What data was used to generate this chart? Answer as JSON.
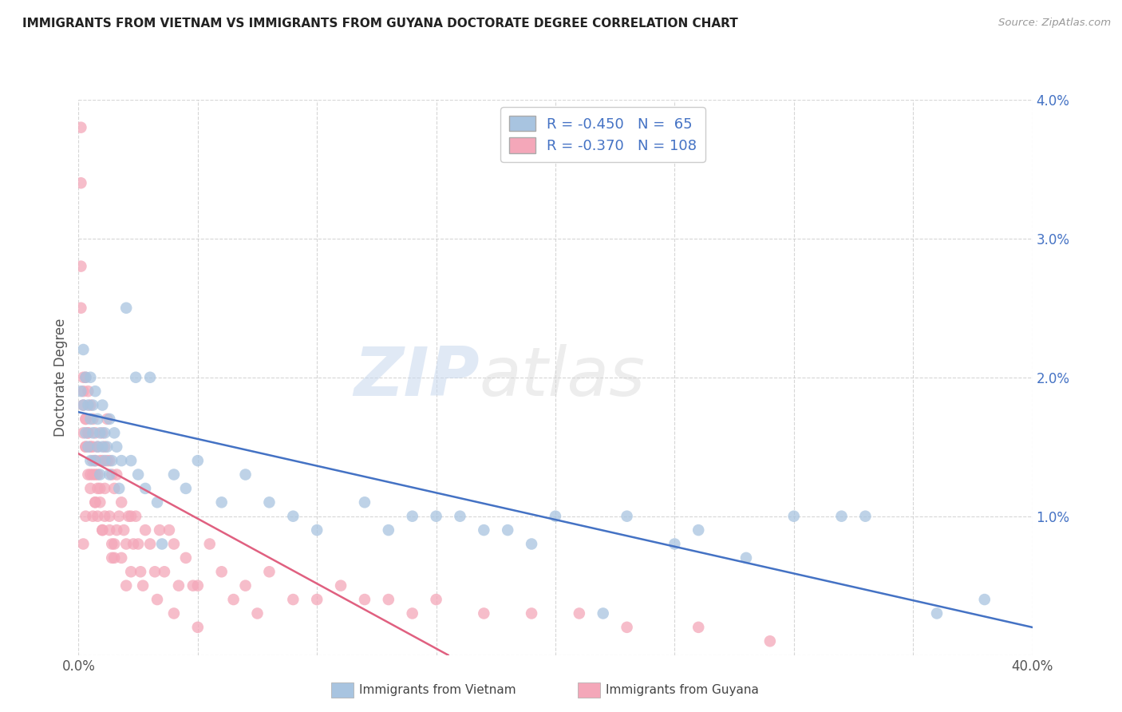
{
  "title": "IMMIGRANTS FROM VIETNAM VS IMMIGRANTS FROM GUYANA DOCTORATE DEGREE CORRELATION CHART",
  "source": "Source: ZipAtlas.com",
  "ylabel": "Doctorate Degree",
  "xlim": [
    0.0,
    0.4
  ],
  "ylim": [
    0.0,
    0.04
  ],
  "xticks": [
    0.0,
    0.05,
    0.1,
    0.15,
    0.2,
    0.25,
    0.3,
    0.35,
    0.4
  ],
  "yticks": [
    0.0,
    0.01,
    0.02,
    0.03,
    0.04
  ],
  "legend_R_blue": "-0.450",
  "legend_N_blue": "65",
  "legend_R_pink": "-0.370",
  "legend_N_pink": "108",
  "legend_label_blue": "Immigrants from Vietnam",
  "legend_label_pink": "Immigrants from Guyana",
  "color_blue": "#a8c4e0",
  "color_pink": "#f4a7b9",
  "line_color_blue": "#4472c4",
  "line_color_pink": "#e06080",
  "watermark_zip": "ZIP",
  "watermark_atlas": "atlas",
  "background_color": "#ffffff",
  "vietnam_x": [
    0.001,
    0.002,
    0.002,
    0.003,
    0.003,
    0.004,
    0.004,
    0.005,
    0.005,
    0.005,
    0.006,
    0.006,
    0.007,
    0.007,
    0.008,
    0.008,
    0.009,
    0.009,
    0.01,
    0.01,
    0.011,
    0.011,
    0.012,
    0.013,
    0.013,
    0.014,
    0.015,
    0.016,
    0.017,
    0.018,
    0.02,
    0.022,
    0.024,
    0.025,
    0.028,
    0.03,
    0.033,
    0.04,
    0.045,
    0.05,
    0.06,
    0.07,
    0.08,
    0.09,
    0.1,
    0.12,
    0.14,
    0.16,
    0.18,
    0.2,
    0.23,
    0.26,
    0.3,
    0.33,
    0.13,
    0.15,
    0.17,
    0.19,
    0.22,
    0.25,
    0.28,
    0.32,
    0.36,
    0.38,
    0.035
  ],
  "vietnam_y": [
    0.019,
    0.022,
    0.018,
    0.016,
    0.02,
    0.018,
    0.015,
    0.017,
    0.014,
    0.02,
    0.016,
    0.018,
    0.014,
    0.019,
    0.015,
    0.017,
    0.013,
    0.016,
    0.015,
    0.018,
    0.014,
    0.016,
    0.015,
    0.013,
    0.017,
    0.014,
    0.016,
    0.015,
    0.012,
    0.014,
    0.025,
    0.014,
    0.02,
    0.013,
    0.012,
    0.02,
    0.011,
    0.013,
    0.012,
    0.014,
    0.011,
    0.013,
    0.011,
    0.01,
    0.009,
    0.011,
    0.01,
    0.01,
    0.009,
    0.01,
    0.01,
    0.009,
    0.01,
    0.01,
    0.009,
    0.01,
    0.009,
    0.008,
    0.003,
    0.008,
    0.007,
    0.01,
    0.003,
    0.004,
    0.008
  ],
  "guyana_x": [
    0.001,
    0.001,
    0.001,
    0.001,
    0.002,
    0.002,
    0.002,
    0.002,
    0.003,
    0.003,
    0.003,
    0.003,
    0.004,
    0.004,
    0.004,
    0.005,
    0.005,
    0.005,
    0.006,
    0.006,
    0.006,
    0.006,
    0.007,
    0.007,
    0.007,
    0.008,
    0.008,
    0.008,
    0.009,
    0.009,
    0.01,
    0.01,
    0.01,
    0.011,
    0.011,
    0.012,
    0.012,
    0.013,
    0.013,
    0.014,
    0.014,
    0.015,
    0.015,
    0.016,
    0.016,
    0.017,
    0.018,
    0.019,
    0.02,
    0.021,
    0.022,
    0.023,
    0.024,
    0.025,
    0.026,
    0.028,
    0.03,
    0.032,
    0.034,
    0.036,
    0.038,
    0.04,
    0.042,
    0.045,
    0.048,
    0.05,
    0.055,
    0.06,
    0.065,
    0.07,
    0.075,
    0.08,
    0.09,
    0.1,
    0.11,
    0.12,
    0.13,
    0.14,
    0.15,
    0.17,
    0.19,
    0.21,
    0.23,
    0.26,
    0.29,
    0.002,
    0.003,
    0.004,
    0.005,
    0.006,
    0.007,
    0.008,
    0.009,
    0.011,
    0.013,
    0.015,
    0.018,
    0.022,
    0.027,
    0.033,
    0.04,
    0.05,
    0.003,
    0.005,
    0.007,
    0.01,
    0.014,
    0.02
  ],
  "guyana_y": [
    0.038,
    0.034,
    0.028,
    0.025,
    0.02,
    0.018,
    0.016,
    0.008,
    0.02,
    0.017,
    0.015,
    0.01,
    0.019,
    0.016,
    0.013,
    0.018,
    0.015,
    0.012,
    0.017,
    0.015,
    0.013,
    0.01,
    0.016,
    0.014,
    0.011,
    0.015,
    0.013,
    0.01,
    0.014,
    0.012,
    0.016,
    0.014,
    0.009,
    0.015,
    0.012,
    0.017,
    0.014,
    0.014,
    0.01,
    0.013,
    0.008,
    0.012,
    0.007,
    0.013,
    0.009,
    0.01,
    0.011,
    0.009,
    0.008,
    0.01,
    0.01,
    0.008,
    0.01,
    0.008,
    0.006,
    0.009,
    0.008,
    0.006,
    0.009,
    0.006,
    0.009,
    0.008,
    0.005,
    0.007,
    0.005,
    0.005,
    0.008,
    0.006,
    0.004,
    0.005,
    0.003,
    0.006,
    0.004,
    0.004,
    0.005,
    0.004,
    0.004,
    0.003,
    0.004,
    0.003,
    0.003,
    0.003,
    0.002,
    0.002,
    0.001,
    0.019,
    0.017,
    0.016,
    0.015,
    0.014,
    0.013,
    0.012,
    0.011,
    0.01,
    0.009,
    0.008,
    0.007,
    0.006,
    0.005,
    0.004,
    0.003,
    0.002,
    0.015,
    0.013,
    0.011,
    0.009,
    0.007,
    0.005
  ],
  "vn_line_x0": 0.0,
  "vn_line_x1": 0.4,
  "vn_line_y0": 0.0175,
  "vn_line_y1": 0.002,
  "gy_line_x0": 0.0,
  "gy_line_x1": 0.155,
  "gy_line_y0": 0.0145,
  "gy_line_y1": 0.0
}
